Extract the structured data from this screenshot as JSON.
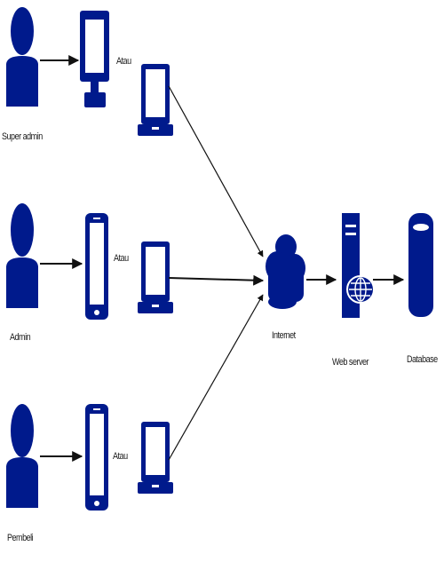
{
  "diagram": {
    "actors": [
      {
        "id": "super-admin",
        "label": "Super admin",
        "device": "desktop"
      },
      {
        "id": "admin",
        "label": "Admin",
        "device": "phone"
      },
      {
        "id": "pembeli",
        "label": "Pembeli",
        "device": "phone"
      }
    ],
    "alt_label": "Atau",
    "alt_device": "laptop",
    "nodes": {
      "internet": "Internet",
      "web_server": "Web server",
      "database": "Database"
    },
    "flow": [
      "actors",
      "Internet",
      "Web server",
      "Database"
    ],
    "colors": {
      "primary": "#001a8c",
      "arrow": "#111111",
      "text": "#1a1a1a"
    }
  }
}
